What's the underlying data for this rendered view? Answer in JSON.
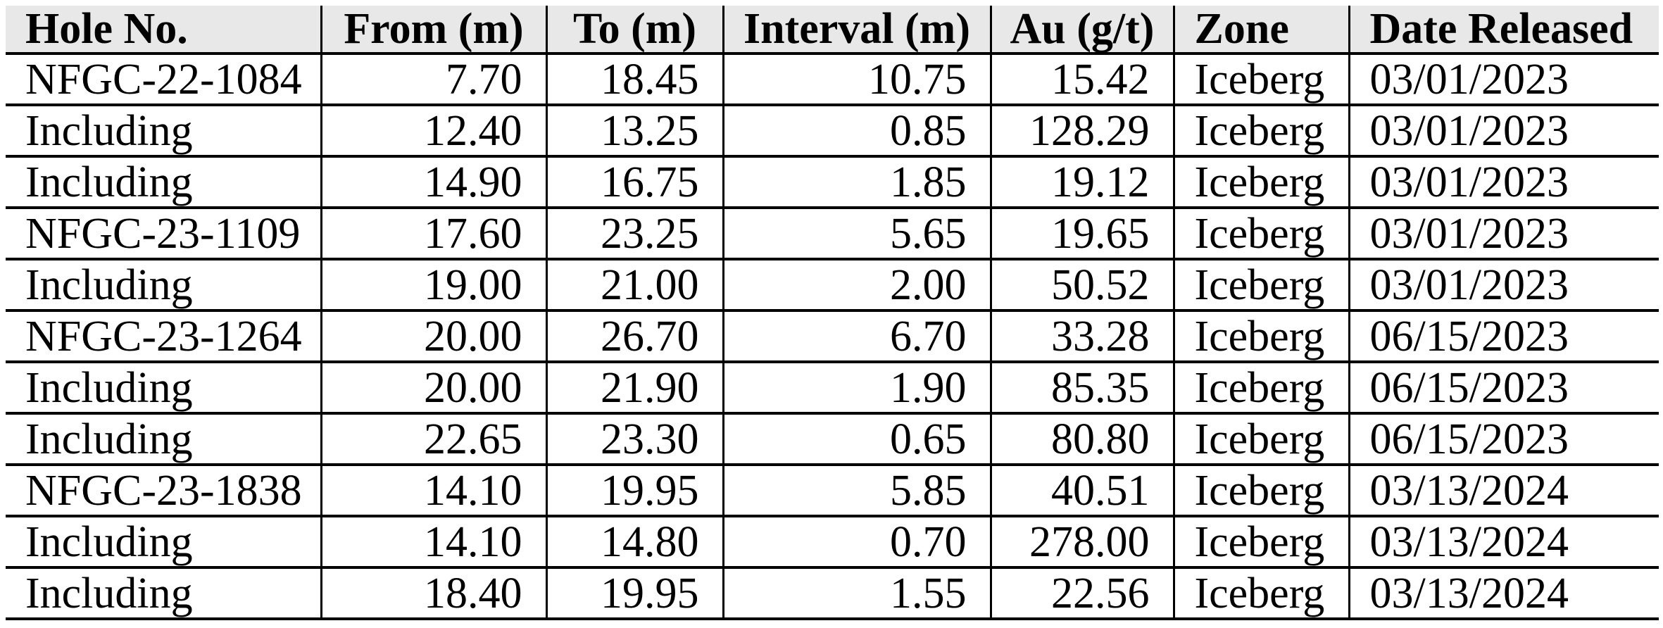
{
  "colors": {
    "header_bg": "#e8e8e8",
    "border": "#000000",
    "row_bg": "#ffffff",
    "text": "#000000"
  },
  "table": {
    "columns": [
      {
        "id": "hole-no",
        "label": "Hole No.",
        "header_align": "left",
        "data_align": "left"
      },
      {
        "id": "from-m",
        "label": "From (m)",
        "header_align": "center",
        "data_align": "right"
      },
      {
        "id": "to-m",
        "label": "To (m)",
        "header_align": "center",
        "data_align": "right"
      },
      {
        "id": "interval-m",
        "label": "Interval (m)",
        "header_align": "center",
        "data_align": "right"
      },
      {
        "id": "au-gt",
        "label": "Au (g/t)",
        "header_align": "center",
        "data_align": "right"
      },
      {
        "id": "zone",
        "label": "Zone",
        "header_align": "left",
        "data_align": "left"
      },
      {
        "id": "date-released",
        "label": "Date Released",
        "header_align": "left",
        "data_align": "left"
      }
    ],
    "rows": [
      [
        "NFGC-22-1084",
        "7.70",
        "18.45",
        "10.75",
        "15.42",
        "Iceberg",
        "03/01/2023"
      ],
      [
        "Including",
        "12.40",
        "13.25",
        "0.85",
        "128.29",
        "Iceberg",
        "03/01/2023"
      ],
      [
        "Including",
        "14.90",
        "16.75",
        "1.85",
        "19.12",
        "Iceberg",
        "03/01/2023"
      ],
      [
        "NFGC-23-1109",
        "17.60",
        "23.25",
        "5.65",
        "19.65",
        "Iceberg",
        "03/01/2023"
      ],
      [
        "Including",
        "19.00",
        "21.00",
        "2.00",
        "50.52",
        "Iceberg",
        "03/01/2023"
      ],
      [
        "NFGC-23-1264",
        "20.00",
        "26.70",
        "6.70",
        "33.28",
        "Iceberg",
        "06/15/2023"
      ],
      [
        "Including",
        "20.00",
        "21.90",
        "1.90",
        "85.35",
        "Iceberg",
        "06/15/2023"
      ],
      [
        "Including",
        "22.65",
        "23.30",
        "0.65",
        "80.80",
        "Iceberg",
        "06/15/2023"
      ],
      [
        "NFGC-23-1838",
        "14.10",
        "19.95",
        "5.85",
        "40.51",
        "Iceberg",
        "03/13/2024"
      ],
      [
        "Including",
        "14.10",
        "14.80",
        "0.70",
        "278.00",
        "Iceberg",
        "03/13/2024"
      ],
      [
        "Including",
        "18.40",
        "19.95",
        "1.55",
        "22.56",
        "Iceberg",
        "03/13/2024"
      ]
    ]
  }
}
